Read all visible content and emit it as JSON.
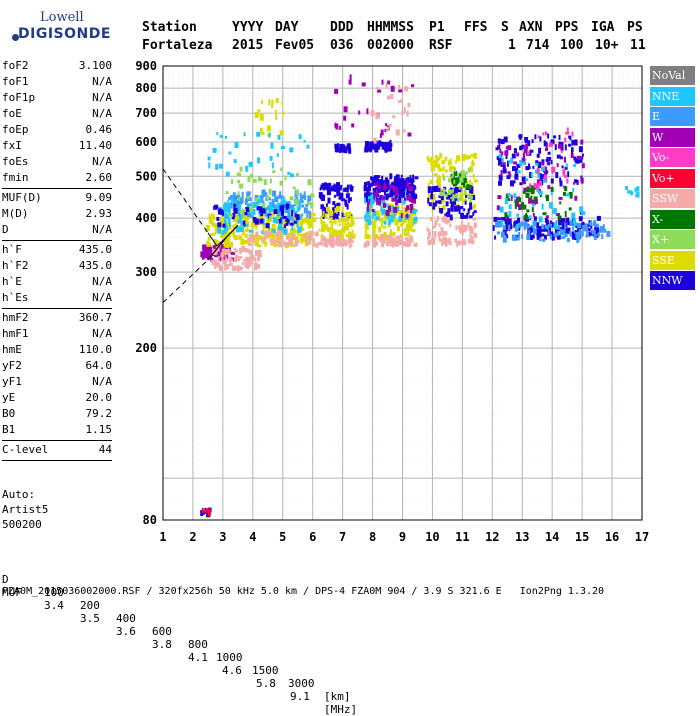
{
  "logo": {
    "top": "Lowell",
    "bottom": "DIGISONDE"
  },
  "header": {
    "labels": [
      "Station",
      "YYYY",
      "DAY",
      "DDD",
      "HHMMSS",
      "P1",
      "FFS",
      "S",
      "AXN",
      "PPS",
      "IGA",
      "PS"
    ],
    "values": [
      "Fortaleza",
      "2015",
      "Fev05",
      "036",
      "002000",
      "RSF",
      "",
      "1",
      "714",
      "100",
      "10+",
      "11"
    ]
  },
  "params": [
    [
      {
        "name": "foF2",
        "value": "3.100"
      },
      {
        "name": "foF1",
        "value": "N/A"
      },
      {
        "name": "foF1p",
        "value": "N/A"
      },
      {
        "name": "foE",
        "value": "N/A"
      },
      {
        "name": "foEp",
        "value": "0.46"
      },
      {
        "name": "fxI",
        "value": "11.40"
      },
      {
        "name": "foEs",
        "value": "N/A"
      },
      {
        "name": "fmin",
        "value": "2.60"
      }
    ],
    [
      {
        "name": "MUF(D)",
        "value": "9.09"
      },
      {
        "name": "M(D)",
        "value": "2.93"
      },
      {
        "name": "D",
        "value": "N/A"
      }
    ],
    [
      {
        "name": "h`F",
        "value": "435.0"
      },
      {
        "name": "h`F2",
        "value": "435.0"
      },
      {
        "name": "h`E",
        "value": "N/A"
      },
      {
        "name": "h`Es",
        "value": "N/A"
      }
    ],
    [
      {
        "name": "hmF2",
        "value": "360.7"
      },
      {
        "name": "hmF1",
        "value": "N/A"
      },
      {
        "name": "hmE",
        "value": "110.0"
      },
      {
        "name": "yF2",
        "value": "64.0"
      },
      {
        "name": "yF1",
        "value": "N/A"
      },
      {
        "name": "yE",
        "value": "20.0"
      },
      {
        "name": "B0",
        "value": "79.2"
      },
      {
        "name": "B1",
        "value": "1.15"
      }
    ],
    [
      {
        "name": "C-level",
        "value": "44"
      }
    ]
  ],
  "auto": {
    "line1": "Auto:",
    "line2": "Artist5",
    "line3": "500200"
  },
  "legend": [
    {
      "label": "NoVal",
      "color": "#7f7f7f"
    },
    {
      "label": "NNE",
      "color": "#1ec8ff"
    },
    {
      "label": "E",
      "color": "#3c9bff"
    },
    {
      "label": "W",
      "color": "#a000b4"
    },
    {
      "label": "Vo-",
      "color": "#ff3cc8"
    },
    {
      "label": "Vo+",
      "color": "#ff0032"
    },
    {
      "label": "SSW",
      "color": "#f5aaaa"
    },
    {
      "label": "X-",
      "color": "#007800"
    },
    {
      "label": "X+",
      "color": "#8cdc5a"
    },
    {
      "label": "SSE",
      "color": "#dcdc00"
    },
    {
      "label": "NNW",
      "color": "#1e00dc"
    }
  ],
  "mufrow": {
    "d_label": "D",
    "d_values": [
      "100",
      "200",
      "400",
      "600",
      "800",
      "1000",
      "1500",
      "3000"
    ],
    "d_unit": "[km]",
    "muf_label": "MUF",
    "muf_values": [
      "3.4",
      "3.5",
      "3.6",
      "3.8",
      "4.1",
      "4.6",
      "5.8",
      "9.1"
    ],
    "muf_unit": "[MHz]"
  },
  "footer": "FZA0M_2015036002000.RSF / 320fx256h 50 kHz 5.0 km / DPS-4 FZA0M 904 / 3.9 S 321.6 E   Ion2Png 1.3.20",
  "chart_data": {
    "type": "scatter",
    "xlim": [
      1,
      17
    ],
    "ylim": [
      80,
      900
    ],
    "xticks": [
      1,
      2,
      3,
      4,
      5,
      6,
      7,
      8,
      9,
      10,
      11,
      12,
      13,
      14,
      15,
      16,
      17
    ],
    "yticks": [
      80,
      200,
      300,
      400,
      500,
      600,
      700,
      800,
      900
    ],
    "grid": true,
    "legend_position": "right",
    "y_scale": "log",
    "clusters": [
      {
        "series": "W",
        "f": [
          2.2,
          3.3
        ],
        "h": [
          320,
          345
        ],
        "n": 60
      },
      {
        "series": "SSW",
        "f": [
          2.6,
          4.2
        ],
        "h": [
          305,
          340
        ],
        "n": 70
      },
      {
        "series": "SSE",
        "f": [
          2.4,
          6.0
        ],
        "h": [
          345,
          410
        ],
        "n": 260
      },
      {
        "series": "E",
        "f": [
          3.0,
          5.9
        ],
        "h": [
          400,
          460
        ],
        "n": 120
      },
      {
        "series": "NNE",
        "f": [
          2.8,
          5.6
        ],
        "h": [
          370,
          440
        ],
        "n": 90
      },
      {
        "series": "NNW",
        "f": [
          2.6,
          5.5
        ],
        "h": [
          380,
          430
        ],
        "n": 50
      },
      {
        "series": "SSW",
        "f": [
          3.8,
          6.2
        ],
        "h": [
          345,
          370
        ],
        "n": 60
      },
      {
        "series": "X+",
        "f": [
          3.0,
          6.0
        ],
        "h": [
          400,
          520
        ],
        "n": 40
      },
      {
        "series": "NNW",
        "f": [
          6.2,
          7.3
        ],
        "h": [
          400,
          480
        ],
        "n": 80
      },
      {
        "series": "SSE",
        "f": [
          6.2,
          7.3
        ],
        "h": [
          360,
          420
        ],
        "n": 70
      },
      {
        "series": "SSW",
        "f": [
          6.2,
          7.3
        ],
        "h": [
          345,
          360
        ],
        "n": 40
      },
      {
        "series": "NNW",
        "f": [
          6.7,
          7.2
        ],
        "h": [
          570,
          590
        ],
        "n": 25
      },
      {
        "series": "NNW",
        "f": [
          7.7,
          9.4
        ],
        "h": [
          440,
          500
        ],
        "n": 170
      },
      {
        "series": "NNW",
        "f": [
          7.7,
          8.6
        ],
        "h": [
          575,
          600
        ],
        "n": 45
      },
      {
        "series": "SSE",
        "f": [
          7.7,
          9.4
        ],
        "h": [
          360,
          430
        ],
        "n": 110
      },
      {
        "series": "SSW",
        "f": [
          7.7,
          9.4
        ],
        "h": [
          345,
          362
        ],
        "n": 55
      },
      {
        "series": "NNE",
        "f": [
          7.7,
          9.4
        ],
        "h": [
          390,
          450
        ],
        "n": 50
      },
      {
        "series": "W",
        "f": [
          7.8,
          9.4
        ],
        "h": [
          400,
          480
        ],
        "n": 40
      },
      {
        "series": "SSE",
        "f": [
          9.8,
          11.4
        ],
        "h": [
          420,
          560
        ],
        "n": 100
      },
      {
        "series": "NNW",
        "f": [
          9.8,
          11.4
        ],
        "h": [
          400,
          470
        ],
        "n": 70
      },
      {
        "series": "SSW",
        "f": [
          9.8,
          11.4
        ],
        "h": [
          345,
          400
        ],
        "n": 70
      },
      {
        "series": "X-",
        "f": [
          10.6,
          11.2
        ],
        "h": [
          470,
          510
        ],
        "n": 25
      },
      {
        "series": "X+",
        "f": [
          10.2,
          11.4
        ],
        "h": [
          440,
          520
        ],
        "n": 30
      },
      {
        "series": "NNW",
        "f": [
          12.0,
          15.5
        ],
        "h": [
          360,
          400
        ],
        "n": 140
      },
      {
        "series": "E",
        "f": [
          12.0,
          15.9
        ],
        "h": [
          355,
          390
        ],
        "n": 80
      },
      {
        "series": "NNW",
        "f": [
          12.1,
          15.0
        ],
        "h": [
          480,
          620
        ],
        "n": 110
      },
      {
        "series": "W",
        "f": [
          12.1,
          15.0
        ],
        "h": [
          400,
          600
        ],
        "n": 60
      },
      {
        "series": "X-",
        "f": [
          12.4,
          14.6
        ],
        "h": [
          400,
          470
        ],
        "n": 35
      },
      {
        "series": "NNE",
        "f": [
          12.2,
          15.0
        ],
        "h": [
          380,
          560
        ],
        "n": 45
      },
      {
        "series": "Vo-",
        "f": [
          13.0,
          14.8
        ],
        "h": [
          470,
          650
        ],
        "n": 20
      },
      {
        "series": "NNW",
        "f": [
          2.2,
          2.5
        ],
        "h": [
          82,
          85
        ],
        "n": 6
      },
      {
        "series": "Vo+",
        "f": [
          2.2,
          2.5
        ],
        "h": [
          82,
          85
        ],
        "n": 4
      },
      {
        "series": "SSE",
        "f": [
          3.8,
          5.0
        ],
        "h": [
          620,
          750
        ],
        "n": 18
      },
      {
        "series": "NNE",
        "f": [
          2.4,
          6.0
        ],
        "h": [
          500,
          650
        ],
        "n": 30
      },
      {
        "series": "W",
        "f": [
          6.7,
          9.3
        ],
        "h": [
          620,
          860
        ],
        "n": 25
      },
      {
        "series": "SSW",
        "f": [
          7.5,
          9.2
        ],
        "h": [
          600,
          820
        ],
        "n": 20
      },
      {
        "series": "NNE",
        "f": [
          16.4,
          17.0
        ],
        "h": [
          450,
          470
        ],
        "n": 8
      }
    ]
  }
}
